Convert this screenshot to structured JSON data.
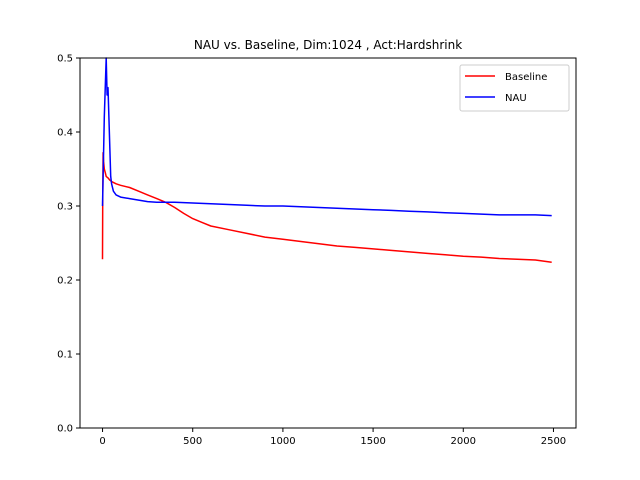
{
  "chart_data": {
    "type": "line",
    "title": "NAU vs. Baseline, Dim:1024 , Act:Hardshrink",
    "xlabel": "",
    "ylabel": "",
    "xlim": [
      -125,
      2625
    ],
    "ylim": [
      0.0,
      0.5
    ],
    "x_ticks": [
      0,
      500,
      1000,
      1500,
      2000,
      2500
    ],
    "y_ticks": [
      0.0,
      0.1,
      0.2,
      0.3,
      0.4,
      0.5
    ],
    "x_tick_labels": [
      "0",
      "500",
      "1000",
      "1500",
      "2000",
      "2500"
    ],
    "y_tick_labels": [
      "0.0",
      "0.1",
      "0.2",
      "0.3",
      "0.4",
      "0.5"
    ],
    "grid": false,
    "legend_position": "top-right",
    "series": [
      {
        "name": "Baseline",
        "color": "#ff0000",
        "x": [
          0,
          1,
          3,
          6,
          10,
          15,
          20,
          30,
          40,
          50,
          75,
          100,
          150,
          200,
          250,
          300,
          350,
          400,
          450,
          500,
          550,
          600,
          700,
          800,
          900,
          1000,
          1100,
          1200,
          1300,
          1400,
          1500,
          1600,
          1700,
          1800,
          1900,
          2000,
          2100,
          2200,
          2300,
          2400,
          2490
        ],
        "values": [
          0.228,
          0.3,
          0.372,
          0.36,
          0.35,
          0.345,
          0.34,
          0.338,
          0.335,
          0.333,
          0.33,
          0.328,
          0.325,
          0.32,
          0.315,
          0.31,
          0.305,
          0.298,
          0.29,
          0.283,
          0.278,
          0.273,
          0.268,
          0.263,
          0.258,
          0.255,
          0.252,
          0.249,
          0.246,
          0.244,
          0.242,
          0.24,
          0.238,
          0.236,
          0.234,
          0.232,
          0.231,
          0.229,
          0.228,
          0.227,
          0.224
        ]
      },
      {
        "name": "NAU",
        "color": "#0000ff",
        "x": [
          0,
          10,
          20,
          25,
          30,
          35,
          40,
          45,
          50,
          60,
          75,
          100,
          150,
          200,
          250,
          300,
          400,
          500,
          600,
          700,
          800,
          900,
          1000,
          1100,
          1200,
          1300,
          1400,
          1500,
          1600,
          1700,
          1800,
          1900,
          2000,
          2100,
          2200,
          2300,
          2400,
          2490
        ],
        "values": [
          0.3,
          0.42,
          0.5,
          0.45,
          0.46,
          0.42,
          0.38,
          0.34,
          0.33,
          0.32,
          0.315,
          0.312,
          0.31,
          0.308,
          0.306,
          0.305,
          0.305,
          0.304,
          0.303,
          0.302,
          0.301,
          0.3,
          0.3,
          0.299,
          0.298,
          0.297,
          0.296,
          0.295,
          0.294,
          0.293,
          0.292,
          0.291,
          0.29,
          0.289,
          0.288,
          0.288,
          0.288,
          0.287
        ]
      }
    ]
  }
}
